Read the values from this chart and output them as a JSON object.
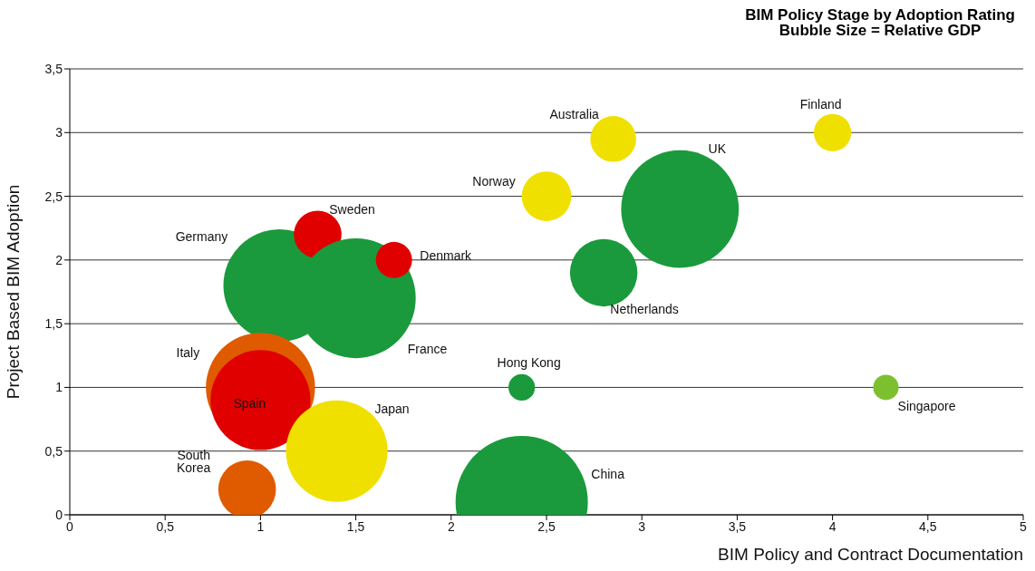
{
  "chart_data": {
    "type": "bubble",
    "title": "BIM Policy Stage by Adoption Rating",
    "subtitle": "Bubble Size = Relative GDP",
    "xlabel": "BIM Policy and Contract Documentation",
    "ylabel": "Project Based BIM Adoption",
    "xlim": [
      0,
      5
    ],
    "xticks": [
      0,
      {
        "value": 0.5,
        "label": "0,5"
      },
      1,
      {
        "value": 1.5,
        "label": "1,5"
      },
      2,
      {
        "value": 2.5,
        "label": "2,5"
      },
      3,
      {
        "value": 3.5,
        "label": "3,5"
      },
      4,
      {
        "value": 4.5,
        "label": "4,5"
      },
      5
    ],
    "ylim": [
      0,
      3.5
    ],
    "yticks": [
      0,
      {
        "value": 0.5,
        "label": "0,5"
      },
      1,
      {
        "value": 1.5,
        "label": "1,5"
      },
      2,
      {
        "value": 2.5,
        "label": "2,5"
      },
      3,
      {
        "value": 3.5,
        "label": "3,5"
      }
    ],
    "grid": "y",
    "legend": false,
    "series": [
      {
        "name": "Germany",
        "color": "#1a9a3c",
        "x": [
          1.1
        ],
        "values": [
          1.8
        ],
        "sizes": [
          0.72
        ]
      },
      {
        "name": "Sweden",
        "color": "#e00000",
        "x": [
          1.3
        ],
        "values": [
          2.2
        ],
        "sizes": [
          0.13
        ]
      },
      {
        "name": "France",
        "color": "#1a9a3c",
        "x": [
          1.5
        ],
        "values": [
          1.7
        ],
        "sizes": [
          0.82
        ]
      },
      {
        "name": "Denmark",
        "color": "#e00000",
        "x": [
          1.7
        ],
        "values": [
          2.0
        ],
        "sizes": [
          0.075
        ]
      },
      {
        "name": "Italy",
        "color": "#e05a00",
        "x": [
          1.0
        ],
        "values": [
          1.0
        ],
        "sizes": [
          0.68
        ]
      },
      {
        "name": "Spain",
        "color": "#e00000",
        "x": [
          1.0
        ],
        "values": [
          0.9
        ],
        "sizes": [
          0.57
        ]
      },
      {
        "name": "Japan",
        "color": "#f0e000",
        "x": [
          1.4
        ],
        "values": [
          0.5
        ],
        "sizes": [
          0.59
        ]
      },
      {
        "name": "South Korea",
        "color": "#e05a00",
        "x": [
          0.93
        ],
        "values": [
          0.2
        ],
        "sizes": [
          0.19
        ]
      },
      {
        "name": "China",
        "color": "#1a9a3c",
        "x": [
          2.37
        ],
        "values": [
          0.1
        ],
        "sizes": [
          1
        ]
      },
      {
        "name": "Hong Kong",
        "color": "#1a9a3c",
        "x": [
          2.37
        ],
        "values": [
          1.0
        ],
        "sizes": [
          0.04
        ]
      },
      {
        "name": "Netherlands",
        "color": "#1a9a3c",
        "x": [
          2.8
        ],
        "values": [
          1.9
        ],
        "sizes": [
          0.26
        ]
      },
      {
        "name": "Norway",
        "color": "#f0e000",
        "x": [
          2.5
        ],
        "values": [
          2.5
        ],
        "sizes": [
          0.14
        ]
      },
      {
        "name": "Australia",
        "color": "#f0e000",
        "x": [
          2.85
        ],
        "values": [
          2.95
        ],
        "sizes": [
          0.12
        ]
      },
      {
        "name": "UK",
        "color": "#1a9a3c",
        "x": [
          3.2
        ],
        "values": [
          2.4
        ],
        "sizes": [
          0.79
        ]
      },
      {
        "name": "Finland",
        "color": "#f0e000",
        "x": [
          4.0
        ],
        "values": [
          3.0
        ],
        "sizes": [
          0.08
        ]
      },
      {
        "name": "Singapore",
        "color": "#7cc030",
        "x": [
          4.28
        ],
        "values": [
          1.0
        ],
        "sizes": [
          0.037
        ]
      }
    ]
  }
}
